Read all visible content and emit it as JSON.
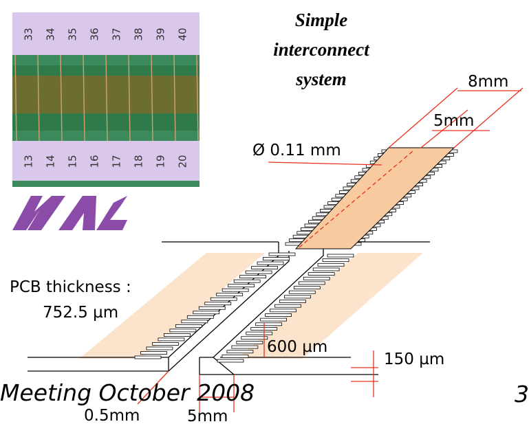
{
  "title": [
    "Simple",
    "interconnect",
    "system"
  ],
  "photo": {
    "top_labels": [
      "33",
      "34",
      "35",
      "36",
      "37",
      "38",
      "39",
      "40"
    ],
    "bottom_labels": [
      "13",
      "14",
      "15",
      "16",
      "17",
      "18",
      "19",
      "20"
    ]
  },
  "dimensions": {
    "outer_width": "8mm",
    "inner_width": "5mm",
    "wire_diameter": "Ø 0.11 mm",
    "step_height": "600 µm",
    "layer_thickness": "150 µm",
    "gap": "0.5mm",
    "pad_length": "5mm"
  },
  "pcb_thickness": [
    "PCB thickness :",
    "752.5 µm"
  ],
  "footer": "Meeting  October 2008",
  "page_number": "3"
}
